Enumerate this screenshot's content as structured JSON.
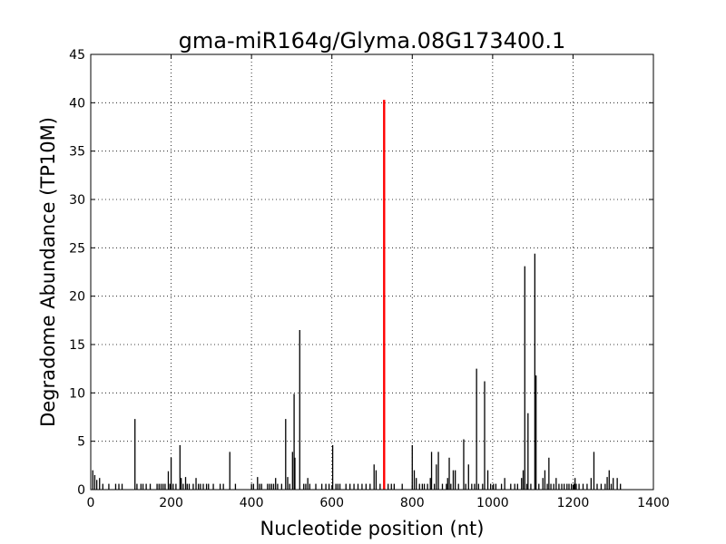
{
  "chart_data": {
    "type": "bar",
    "title": "gma-miR164g/Glyma.08G173400.1",
    "xlabel": "Nucleotide position (nt)",
    "ylabel": "Degradome Abundance (TP10M)",
    "xlim": [
      0,
      1400
    ],
    "ylim": [
      0,
      45
    ],
    "xticks": [
      0,
      200,
      400,
      600,
      800,
      1000,
      1200,
      1400
    ],
    "yticks": [
      0,
      5,
      10,
      15,
      20,
      25,
      30,
      35,
      40,
      45
    ],
    "grid": true,
    "highlight_color": "#ff0000",
    "bar_color": "#000000",
    "series": [
      {
        "values": [
          [
            5,
            2.0
          ],
          [
            10,
            1.5
          ],
          [
            15,
            1.0
          ],
          [
            22,
            1.2
          ],
          [
            30,
            0.6
          ],
          [
            45,
            0.6
          ],
          [
            62,
            0.6
          ],
          [
            70,
            0.6
          ],
          [
            78,
            0.6
          ],
          [
            110,
            7.3
          ],
          [
            115,
            0.6
          ],
          [
            125,
            0.6
          ],
          [
            130,
            0.6
          ],
          [
            138,
            0.6
          ],
          [
            148,
            0.6
          ],
          [
            165,
            0.6
          ],
          [
            170,
            0.6
          ],
          [
            175,
            0.6
          ],
          [
            180,
            0.6
          ],
          [
            185,
            0.6
          ],
          [
            193,
            1.9
          ],
          [
            197,
            0.6
          ],
          [
            200,
            3.3
          ],
          [
            205,
            0.6
          ],
          [
            212,
            0.6
          ],
          [
            222,
            4.6
          ],
          [
            225,
            1.2
          ],
          [
            230,
            0.6
          ],
          [
            236,
            1.3
          ],
          [
            240,
            0.6
          ],
          [
            245,
            0.6
          ],
          [
            255,
            0.6
          ],
          [
            262,
            1.2
          ],
          [
            268,
            0.6
          ],
          [
            273,
            0.6
          ],
          [
            280,
            0.6
          ],
          [
            288,
            0.6
          ],
          [
            293,
            0.6
          ],
          [
            305,
            0.6
          ],
          [
            322,
            0.6
          ],
          [
            330,
            0.6
          ],
          [
            346,
            3.9
          ],
          [
            360,
            0.6
          ],
          [
            400,
            0.6
          ],
          [
            405,
            0.6
          ],
          [
            415,
            1.3
          ],
          [
            420,
            0.6
          ],
          [
            425,
            0.6
          ],
          [
            440,
            0.6
          ],
          [
            445,
            0.6
          ],
          [
            450,
            0.6
          ],
          [
            455,
            0.6
          ],
          [
            460,
            1.2
          ],
          [
            465,
            0.6
          ],
          [
            475,
            0.6
          ],
          [
            485,
            7.3
          ],
          [
            490,
            1.3
          ],
          [
            495,
            0.6
          ],
          [
            502,
            3.9
          ],
          [
            506,
            9.9
          ],
          [
            508,
            3.3
          ],
          [
            520,
            16.5
          ],
          [
            530,
            0.6
          ],
          [
            535,
            0.6
          ],
          [
            540,
            1.2
          ],
          [
            545,
            0.6
          ],
          [
            560,
            0.6
          ],
          [
            575,
            0.6
          ],
          [
            585,
            0.6
          ],
          [
            593,
            0.6
          ],
          [
            602,
            4.6
          ],
          [
            610,
            0.6
          ],
          [
            615,
            0.6
          ],
          [
            620,
            0.6
          ],
          [
            635,
            0.6
          ],
          [
            645,
            0.6
          ],
          [
            655,
            0.6
          ],
          [
            665,
            0.6
          ],
          [
            675,
            0.6
          ],
          [
            685,
            0.6
          ],
          [
            695,
            0.6
          ],
          [
            705,
            2.6
          ],
          [
            710,
            2.0
          ],
          [
            720,
            0.6
          ],
          [
            740,
            0.6
          ],
          [
            748,
            0.6
          ],
          [
            755,
            0.6
          ],
          [
            775,
            0.6
          ],
          [
            800,
            4.6
          ],
          [
            805,
            2.0
          ],
          [
            810,
            1.2
          ],
          [
            818,
            0.6
          ],
          [
            825,
            0.6
          ],
          [
            830,
            0.6
          ],
          [
            838,
            0.6
          ],
          [
            845,
            1.2
          ],
          [
            848,
            3.9
          ],
          [
            855,
            0.6
          ],
          [
            860,
            2.6
          ],
          [
            865,
            3.9
          ],
          [
            875,
            0.6
          ],
          [
            885,
            0.6
          ],
          [
            888,
            1.2
          ],
          [
            892,
            3.3
          ],
          [
            896,
            0.6
          ],
          [
            902,
            2.0
          ],
          [
            907,
            2.0
          ],
          [
            915,
            0.6
          ],
          [
            928,
            5.2
          ],
          [
            933,
            0.6
          ],
          [
            940,
            2.6
          ],
          [
            948,
            0.6
          ],
          [
            955,
            0.6
          ],
          [
            960,
            12.5
          ],
          [
            965,
            0.6
          ],
          [
            975,
            0.6
          ],
          [
            980,
            11.2
          ],
          [
            988,
            2.0
          ],
          [
            995,
            0.6
          ],
          [
            1002,
            0.6
          ],
          [
            1008,
            0.6
          ],
          [
            1022,
            0.6
          ],
          [
            1030,
            1.2
          ],
          [
            1045,
            0.6
          ],
          [
            1055,
            0.6
          ],
          [
            1062,
            0.6
          ],
          [
            1072,
            1.2
          ],
          [
            1076,
            2.0
          ],
          [
            1080,
            23.1
          ],
          [
            1085,
            0.6
          ],
          [
            1088,
            7.9
          ],
          [
            1095,
            0.6
          ],
          [
            1105,
            24.4
          ],
          [
            1108,
            11.8
          ],
          [
            1115,
            0.6
          ],
          [
            1125,
            1.2
          ],
          [
            1130,
            2.0
          ],
          [
            1136,
            0.6
          ],
          [
            1140,
            3.3
          ],
          [
            1145,
            0.6
          ],
          [
            1152,
            0.6
          ],
          [
            1158,
            1.2
          ],
          [
            1165,
            0.6
          ],
          [
            1172,
            0.6
          ],
          [
            1178,
            0.6
          ],
          [
            1185,
            0.6
          ],
          [
            1190,
            0.6
          ],
          [
            1196,
            0.6
          ],
          [
            1202,
            0.6
          ],
          [
            1205,
            1.2
          ],
          [
            1208,
            0.6
          ],
          [
            1215,
            0.6
          ],
          [
            1225,
            0.6
          ],
          [
            1235,
            0.6
          ],
          [
            1245,
            1.2
          ],
          [
            1252,
            3.9
          ],
          [
            1260,
            0.6
          ],
          [
            1270,
            0.6
          ],
          [
            1280,
            0.6
          ],
          [
            1285,
            1.3
          ],
          [
            1290,
            2.0
          ],
          [
            1295,
            0.6
          ],
          [
            1300,
            1.2
          ],
          [
            1310,
            1.2
          ],
          [
            1318,
            0.6
          ]
        ]
      }
    ],
    "highlight": {
      "x": 730,
      "y": 40.3
    }
  }
}
